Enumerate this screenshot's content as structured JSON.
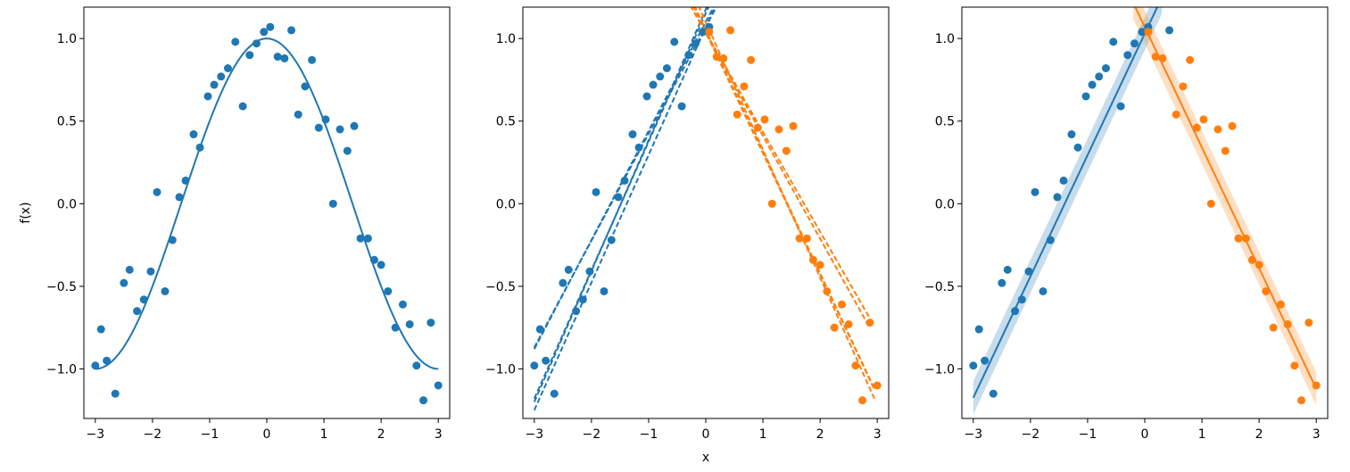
{
  "chart_data": [
    {
      "type": "scatter",
      "panel": "left",
      "title": "",
      "xlabel": "",
      "ylabel": "f(x)",
      "xlim": [
        -3.2,
        3.2
      ],
      "ylim": [
        -1.3,
        1.19
      ],
      "xticks": [
        -3,
        -2,
        -1,
        0,
        1,
        2,
        3
      ],
      "xtick_labels": [
        "−3",
        "−2",
        "−1",
        "0",
        "1",
        "2",
        "3"
      ],
      "yticks": [
        -1.0,
        -0.5,
        0.0,
        0.5,
        1.0
      ],
      "ytick_labels": [
        "−1.0",
        "−0.5",
        "0.0",
        "0.5",
        "1.0"
      ],
      "grid": false,
      "points": [
        {
          "x": -3.0,
          "y": -0.98
        },
        {
          "x": -2.9,
          "y": -0.76
        },
        {
          "x": -2.8,
          "y": -0.95
        },
        {
          "x": -2.65,
          "y": -1.15
        },
        {
          "x": -2.5,
          "y": -0.48
        },
        {
          "x": -2.4,
          "y": -0.4
        },
        {
          "x": -2.27,
          "y": -0.65
        },
        {
          "x": -2.15,
          "y": -0.58
        },
        {
          "x": -2.03,
          "y": -0.41
        },
        {
          "x": -1.92,
          "y": 0.07
        },
        {
          "x": -1.78,
          "y": -0.53
        },
        {
          "x": -1.65,
          "y": -0.22
        },
        {
          "x": -1.53,
          "y": 0.04
        },
        {
          "x": -1.42,
          "y": 0.14
        },
        {
          "x": -1.28,
          "y": 0.42
        },
        {
          "x": -1.17,
          "y": 0.34
        },
        {
          "x": -1.03,
          "y": 0.65
        },
        {
          "x": -0.92,
          "y": 0.72
        },
        {
          "x": -0.8,
          "y": 0.77
        },
        {
          "x": -0.68,
          "y": 0.82
        },
        {
          "x": -0.55,
          "y": 0.98
        },
        {
          "x": -0.42,
          "y": 0.59
        },
        {
          "x": -0.3,
          "y": 0.9
        },
        {
          "x": -0.18,
          "y": 0.97
        },
        {
          "x": -0.05,
          "y": 1.04
        },
        {
          "x": 0.06,
          "y": 1.07
        },
        {
          "x": 0.19,
          "y": 0.89
        },
        {
          "x": 0.31,
          "y": 0.88
        },
        {
          "x": 0.43,
          "y": 1.05
        },
        {
          "x": 0.55,
          "y": 0.54
        },
        {
          "x": 0.67,
          "y": 0.71
        },
        {
          "x": 0.79,
          "y": 0.87
        },
        {
          "x": 0.91,
          "y": 0.46
        },
        {
          "x": 1.03,
          "y": 0.51
        },
        {
          "x": 1.16,
          "y": 0.0
        },
        {
          "x": 1.28,
          "y": 0.45
        },
        {
          "x": 1.41,
          "y": 0.32
        },
        {
          "x": 1.53,
          "y": 0.47
        },
        {
          "x": 1.64,
          "y": -0.21
        },
        {
          "x": 1.77,
          "y": -0.21
        },
        {
          "x": 1.88,
          "y": -0.34
        },
        {
          "x": 2.0,
          "y": -0.37
        },
        {
          "x": 2.12,
          "y": -0.53
        },
        {
          "x": 2.25,
          "y": -0.75
        },
        {
          "x": 2.38,
          "y": -0.61
        },
        {
          "x": 2.5,
          "y": -0.73
        },
        {
          "x": 2.62,
          "y": -0.98
        },
        {
          "x": 2.74,
          "y": -1.19
        },
        {
          "x": 2.87,
          "y": -0.72
        },
        {
          "x": 3.0,
          "y": -1.1
        }
      ],
      "curve": {
        "function": "cos(x * pi / 3)",
        "x_range": [
          -3,
          3
        ],
        "color": "#1f77b4"
      },
      "point_color": "#1f77b4"
    },
    {
      "type": "scatter",
      "panel": "middle",
      "title": "",
      "xlabel": "x",
      "ylabel": "",
      "xlim": [
        -3.2,
        3.2
      ],
      "ylim": [
        -1.3,
        1.19
      ],
      "xticks": [
        -3,
        -2,
        -1,
        0,
        1,
        2,
        3
      ],
      "xtick_labels": [
        "−3",
        "−2",
        "−1",
        "0",
        "1",
        "2",
        "3"
      ],
      "yticks": [
        -1.0,
        -0.5,
        0.0,
        0.5,
        1.0
      ],
      "ytick_labels": [
        "−1.0",
        "−0.5",
        "0.0",
        "0.5",
        "1.0"
      ],
      "grid": false,
      "series": [
        {
          "color": "#1f77b4",
          "points": [
            {
              "x": -3.0,
              "y": -0.98
            },
            {
              "x": -2.9,
              "y": -0.76
            },
            {
              "x": -2.8,
              "y": -0.95
            },
            {
              "x": -2.65,
              "y": -1.15
            },
            {
              "x": -2.5,
              "y": -0.48
            },
            {
              "x": -2.4,
              "y": -0.4
            },
            {
              "x": -2.27,
              "y": -0.65
            },
            {
              "x": -2.15,
              "y": -0.58
            },
            {
              "x": -2.03,
              "y": -0.41
            },
            {
              "x": -1.92,
              "y": 0.07
            },
            {
              "x": -1.78,
              "y": -0.53
            },
            {
              "x": -1.65,
              "y": -0.22
            },
            {
              "x": -1.53,
              "y": 0.04
            },
            {
              "x": -1.42,
              "y": 0.14
            },
            {
              "x": -1.28,
              "y": 0.42
            },
            {
              "x": -1.17,
              "y": 0.34
            },
            {
              "x": -1.03,
              "y": 0.65
            },
            {
              "x": -0.92,
              "y": 0.72
            },
            {
              "x": -0.8,
              "y": 0.77
            },
            {
              "x": -0.68,
              "y": 0.82
            },
            {
              "x": -0.55,
              "y": 0.98
            },
            {
              "x": -0.42,
              "y": 0.59
            },
            {
              "x": -0.3,
              "y": 0.9
            },
            {
              "x": -0.18,
              "y": 0.97
            },
            {
              "x": -0.05,
              "y": 1.04
            },
            {
              "x": 0.06,
              "y": 1.07
            }
          ],
          "dashed_lines": [
            {
              "x": [
                -3.0,
                0.2
              ],
              "y": [
                -0.87,
                1.2
              ]
            },
            {
              "x": [
                -3.0,
                0.15
              ],
              "y": [
                -0.88,
                1.2
              ]
            },
            {
              "x": [
                -3.0,
                0.06
              ],
              "y": [
                -1.18,
                1.2
              ]
            },
            {
              "x": [
                -3.0,
                0.03
              ],
              "y": [
                -1.2,
                1.2
              ]
            },
            {
              "x": [
                -3.0,
                0.17
              ],
              "y": [
                -1.25,
                1.2
              ]
            }
          ]
        },
        {
          "color": "#ff7f0e",
          "points": [
            {
              "x": 0.06,
              "y": 1.04
            },
            {
              "x": 0.19,
              "y": 0.89
            },
            {
              "x": 0.31,
              "y": 0.88
            },
            {
              "x": 0.43,
              "y": 1.05
            },
            {
              "x": 0.55,
              "y": 0.54
            },
            {
              "x": 0.67,
              "y": 0.71
            },
            {
              "x": 0.79,
              "y": 0.87
            },
            {
              "x": 0.91,
              "y": 0.46
            },
            {
              "x": 1.03,
              "y": 0.51
            },
            {
              "x": 1.16,
              "y": 0.0
            },
            {
              "x": 1.28,
              "y": 0.45
            },
            {
              "x": 1.41,
              "y": 0.32
            },
            {
              "x": 1.53,
              "y": 0.47
            },
            {
              "x": 1.64,
              "y": -0.21
            },
            {
              "x": 1.77,
              "y": -0.21
            },
            {
              "x": 1.88,
              "y": -0.34
            },
            {
              "x": 2.0,
              "y": -0.37
            },
            {
              "x": 2.12,
              "y": -0.53
            },
            {
              "x": 2.25,
              "y": -0.75
            },
            {
              "x": 2.38,
              "y": -0.61
            },
            {
              "x": 2.5,
              "y": -0.73
            },
            {
              "x": 2.62,
              "y": -0.98
            },
            {
              "x": 2.74,
              "y": -1.19
            },
            {
              "x": 2.87,
              "y": -0.72
            },
            {
              "x": 3.0,
              "y": -1.1
            }
          ],
          "dashed_lines": [
            {
              "x": [
                -0.27,
                2.93
              ],
              "y": [
                1.2,
                -0.73
              ]
            },
            {
              "x": [
                -0.27,
                2.85
              ],
              "y": [
                1.2,
                -0.74
              ]
            },
            {
              "x": [
                -0.22,
                2.93
              ],
              "y": [
                1.2,
                -1.11
              ]
            },
            {
              "x": [
                -0.2,
                2.95
              ],
              "y": [
                1.2,
                -1.12
              ]
            },
            {
              "x": [
                -0.13,
                2.95
              ],
              "y": [
                1.2,
                -1.18
              ]
            }
          ]
        }
      ]
    },
    {
      "type": "scatter",
      "panel": "right",
      "title": "",
      "xlabel": "",
      "ylabel": "",
      "xlim": [
        -3.2,
        3.2
      ],
      "ylim": [
        -1.3,
        1.19
      ],
      "xticks": [
        -3,
        -2,
        -1,
        0,
        1,
        2,
        3
      ],
      "xtick_labels": [
        "−3",
        "−2",
        "−1",
        "0",
        "1",
        "2",
        "3"
      ],
      "yticks": [
        -1.0,
        -0.5,
        0.0,
        0.5,
        1.0
      ],
      "ytick_labels": [
        "−1.0",
        "−0.5",
        "0.0",
        "0.5",
        "1.0"
      ],
      "grid": false,
      "series": [
        {
          "color": "#1f77b4",
          "points": [
            {
              "x": -3.0,
              "y": -0.98
            },
            {
              "x": -2.9,
              "y": -0.76
            },
            {
              "x": -2.8,
              "y": -0.95
            },
            {
              "x": -2.65,
              "y": -1.15
            },
            {
              "x": -2.5,
              "y": -0.48
            },
            {
              "x": -2.4,
              "y": -0.4
            },
            {
              "x": -2.27,
              "y": -0.65
            },
            {
              "x": -2.15,
              "y": -0.58
            },
            {
              "x": -2.03,
              "y": -0.41
            },
            {
              "x": -1.92,
              "y": 0.07
            },
            {
              "x": -1.78,
              "y": -0.53
            },
            {
              "x": -1.65,
              "y": -0.22
            },
            {
              "x": -1.53,
              "y": 0.04
            },
            {
              "x": -1.42,
              "y": 0.14
            },
            {
              "x": -1.28,
              "y": 0.42
            },
            {
              "x": -1.17,
              "y": 0.34
            },
            {
              "x": -1.03,
              "y": 0.65
            },
            {
              "x": -0.92,
              "y": 0.72
            },
            {
              "x": -0.8,
              "y": 0.77
            },
            {
              "x": -0.68,
              "y": 0.82
            },
            {
              "x": -0.55,
              "y": 0.98
            },
            {
              "x": -0.42,
              "y": 0.59
            },
            {
              "x": -0.3,
              "y": 0.9
            },
            {
              "x": -0.18,
              "y": 0.97
            },
            {
              "x": -0.05,
              "y": 1.04
            },
            {
              "x": 0.06,
              "y": 1.07
            },
            {
              "x": 0.43,
              "y": 1.05
            }
          ],
          "fit_line": {
            "slope": 0.735,
            "intercept": 1.03,
            "x_range": [
              -3.0,
              0.3
            ],
            "band": 0.1
          }
        },
        {
          "color": "#ff7f0e",
          "points": [
            {
              "x": 0.06,
              "y": 1.04
            },
            {
              "x": 0.19,
              "y": 0.89
            },
            {
              "x": 0.31,
              "y": 0.88
            },
            {
              "x": 0.55,
              "y": 0.54
            },
            {
              "x": 0.67,
              "y": 0.71
            },
            {
              "x": 0.79,
              "y": 0.87
            },
            {
              "x": 0.91,
              "y": 0.46
            },
            {
              "x": 1.03,
              "y": 0.51
            },
            {
              "x": 1.16,
              "y": 0.0
            },
            {
              "x": 1.28,
              "y": 0.45
            },
            {
              "x": 1.41,
              "y": 0.32
            },
            {
              "x": 1.53,
              "y": 0.47
            },
            {
              "x": 1.64,
              "y": -0.21
            },
            {
              "x": 1.77,
              "y": -0.21
            },
            {
              "x": 1.88,
              "y": -0.34
            },
            {
              "x": 2.0,
              "y": -0.37
            },
            {
              "x": 2.12,
              "y": -0.53
            },
            {
              "x": 2.25,
              "y": -0.75
            },
            {
              "x": 2.38,
              "y": -0.61
            },
            {
              "x": 2.5,
              "y": -0.73
            },
            {
              "x": 2.62,
              "y": -0.98
            },
            {
              "x": 2.74,
              "y": -1.19
            },
            {
              "x": 2.87,
              "y": -0.72
            },
            {
              "x": 3.0,
              "y": -1.1
            }
          ],
          "fit_line": {
            "slope": -0.73,
            "intercept": 1.07,
            "x_range": [
              -0.2,
              3.0
            ],
            "band": 0.1
          }
        }
      ]
    }
  ]
}
